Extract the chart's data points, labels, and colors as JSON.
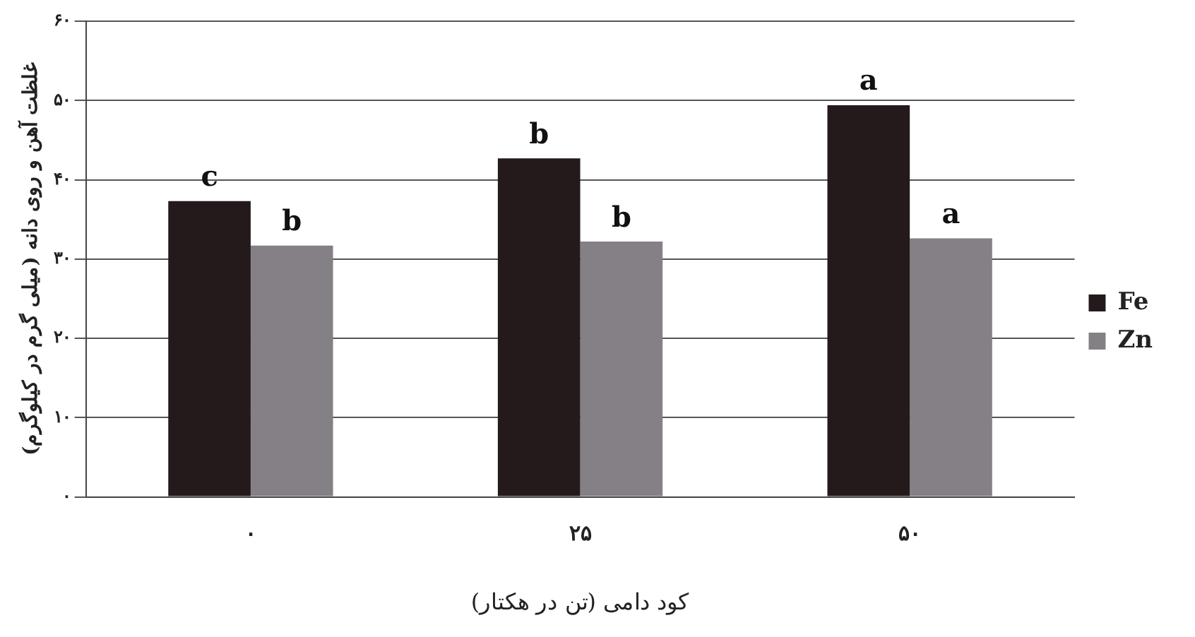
{
  "chart_data": {
    "type": "bar",
    "xlabel": "کود دامی (تن در هکتار)",
    "ylabel": "غلظت آهن و روی دانه (میلی گرم در کیلوگرم)",
    "categories": [
      "۰",
      "۲۵",
      "۵۰"
    ],
    "series": [
      {
        "name": "Fe",
        "color": "#241a1b",
        "values": [
          37.3,
          42.7,
          49.4
        ],
        "value_labels": [
          "c",
          "b",
          "a"
        ]
      },
      {
        "name": "Zn",
        "color": "#858085",
        "values": [
          31.7,
          32.2,
          32.6
        ],
        "value_labels": [
          "b",
          "b",
          "a"
        ]
      }
    ],
    "ylim": [
      0,
      60
    ],
    "yticks": [
      {
        "value": 0,
        "label": "۰"
      },
      {
        "value": 10,
        "label": "۱۰"
      },
      {
        "value": 20,
        "label": "۲۰"
      },
      {
        "value": 30,
        "label": "۳۰"
      },
      {
        "value": 40,
        "label": "۴۰"
      },
      {
        "value": 50,
        "label": "۵۰"
      },
      {
        "value": 60,
        "label": "۶۰"
      }
    ],
    "grid": "y",
    "legend": "right"
  }
}
